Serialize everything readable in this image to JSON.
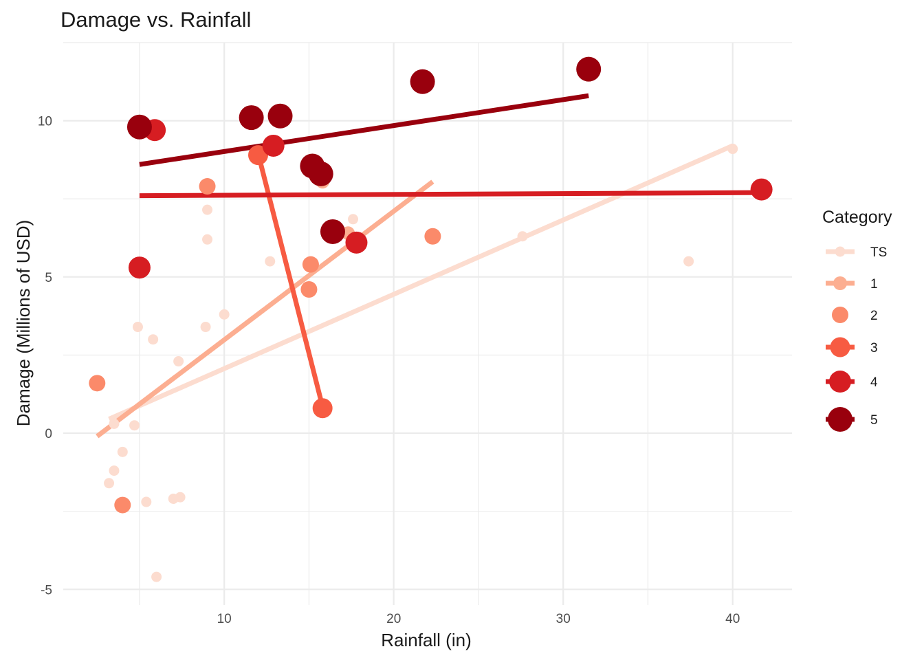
{
  "chart_data": {
    "type": "scatter",
    "title": "Damage vs. Rainfall",
    "xlabel": "Rainfall (in)",
    "ylabel": "Damage (Millions of USD)",
    "xlim": [
      0.5,
      43.5
    ],
    "ylim": [
      -5.5,
      12.5
    ],
    "x_ticks": [
      10,
      20,
      30,
      40
    ],
    "y_ticks": [
      -5,
      0,
      5,
      10
    ],
    "x_tick_labels": [
      "10",
      "20",
      "30",
      "40"
    ],
    "y_tick_labels": [
      "-5",
      "0",
      "5",
      "10"
    ],
    "grid": true,
    "legend": {
      "title": "Category",
      "position": "right"
    },
    "series": [
      {
        "name": "TS",
        "color": "#fcdccf",
        "points": [
          {
            "x": 3.5,
            "y": 0.3
          },
          {
            "x": 4.7,
            "y": 0.25
          },
          {
            "x": 4.9,
            "y": 3.4
          },
          {
            "x": 4.0,
            "y": -0.6
          },
          {
            "x": 3.5,
            "y": -1.2
          },
          {
            "x": 3.2,
            "y": -1.6
          },
          {
            "x": 5.8,
            "y": 3.0
          },
          {
            "x": 5.4,
            "y": -2.2
          },
          {
            "x": 7.0,
            "y": -2.1
          },
          {
            "x": 7.4,
            "y": -2.05
          },
          {
            "x": 7.3,
            "y": 2.3
          },
          {
            "x": 6.0,
            "y": -4.6
          },
          {
            "x": 8.9,
            "y": 3.4
          },
          {
            "x": 9.0,
            "y": 6.2
          },
          {
            "x": 9.0,
            "y": 7.15
          },
          {
            "x": 10.0,
            "y": 3.8
          },
          {
            "x": 12.7,
            "y": 5.5
          },
          {
            "x": 17.6,
            "y": 6.85
          },
          {
            "x": 27.6,
            "y": 6.3
          },
          {
            "x": 37.4,
            "y": 5.5
          },
          {
            "x": 40.0,
            "y": 9.1
          }
        ],
        "trend": {
          "x1": 3.2,
          "y1": 0.45,
          "x2": 40.0,
          "y2": 9.2
        }
      },
      {
        "name": "1",
        "color": "#fcae91",
        "points": [
          {
            "x": 15.8,
            "y": 8.05
          },
          {
            "x": 17.3,
            "y": 6.4
          }
        ],
        "trend": {
          "x1": 2.5,
          "y1": -0.1,
          "x2": 22.3,
          "y2": 8.05
        }
      },
      {
        "name": "2",
        "color": "#fb8a6a",
        "points": [
          {
            "x": 2.5,
            "y": 1.6
          },
          {
            "x": 4.0,
            "y": -2.3
          },
          {
            "x": 9.0,
            "y": 7.9
          },
          {
            "x": 15.0,
            "y": 4.6
          },
          {
            "x": 15.1,
            "y": 5.4
          },
          {
            "x": 22.3,
            "y": 6.3
          }
        ],
        "trend": null
      },
      {
        "name": "3",
        "color": "#f75b42",
        "points": [
          {
            "x": 12.0,
            "y": 8.9
          },
          {
            "x": 15.8,
            "y": 0.8
          }
        ],
        "trend": {
          "x1": 12.0,
          "y1": 8.95,
          "x2": 15.8,
          "y2": 0.85
        }
      },
      {
        "name": "4",
        "color": "#d61d22",
        "points": [
          {
            "x": 5.0,
            "y": 5.3
          },
          {
            "x": 5.9,
            "y": 9.7
          },
          {
            "x": 12.9,
            "y": 9.2
          },
          {
            "x": 17.8,
            "y": 6.1
          },
          {
            "x": 41.7,
            "y": 7.8
          }
        ],
        "trend": {
          "x1": 5.0,
          "y1": 7.6,
          "x2": 41.7,
          "y2": 7.7
        }
      },
      {
        "name": "5",
        "color": "#99000d",
        "points": [
          {
            "x": 5.0,
            "y": 9.8
          },
          {
            "x": 11.6,
            "y": 10.1
          },
          {
            "x": 13.3,
            "y": 10.15
          },
          {
            "x": 15.2,
            "y": 8.55
          },
          {
            "x": 15.7,
            "y": 8.3
          },
          {
            "x": 16.4,
            "y": 6.45
          },
          {
            "x": 21.7,
            "y": 11.25
          },
          {
            "x": 31.5,
            "y": 11.65
          }
        ],
        "trend": {
          "x1": 5.0,
          "y1": 8.6,
          "x2": 31.5,
          "y2": 10.8
        }
      }
    ]
  }
}
